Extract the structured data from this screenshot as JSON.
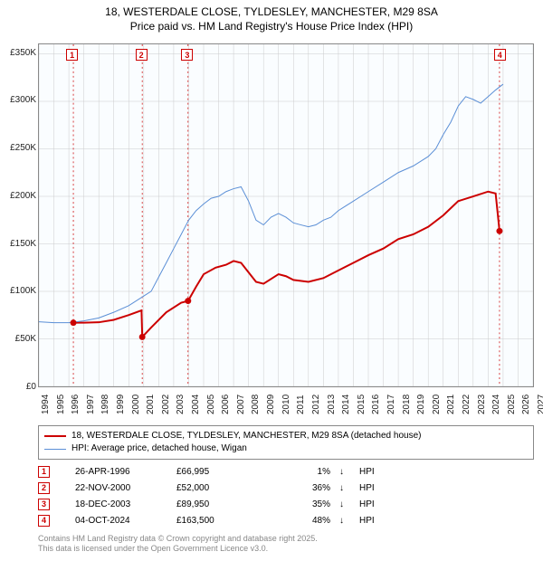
{
  "title_line1": "18, WESTERDALE CLOSE, TYLDESLEY, MANCHESTER, M29 8SA",
  "title_line2": "Price paid vs. HM Land Registry's House Price Index (HPI)",
  "chart": {
    "type": "line",
    "background_color": "#fafdff",
    "grid_color": "#cccccc",
    "border_color": "#888888",
    "x_years": [
      1994,
      1995,
      1996,
      1997,
      1998,
      1999,
      2000,
      2001,
      2002,
      2003,
      2004,
      2005,
      2006,
      2007,
      2008,
      2009,
      2010,
      2011,
      2012,
      2013,
      2014,
      2015,
      2016,
      2017,
      2018,
      2019,
      2020,
      2021,
      2022,
      2023,
      2024,
      2025,
      2026,
      2027
    ],
    "xlim": [
      1994,
      2027
    ],
    "ylim": [
      0,
      360000
    ],
    "ytick_step": 50000,
    "ytick_labels": [
      "£0",
      "£50K",
      "£100K",
      "£150K",
      "£200K",
      "£250K",
      "£300K",
      "£350K"
    ],
    "series": [
      {
        "name": "18, WESTERDALE CLOSE, TYLDESLEY, MANCHESTER, M29 8SA (detached house)",
        "color": "#cc0000",
        "width": 2,
        "points": [
          [
            1996.3,
            66995
          ],
          [
            1997,
            67000
          ],
          [
            1998,
            67500
          ],
          [
            1999,
            70000
          ],
          [
            2000,
            75000
          ],
          [
            2000.85,
            80000
          ],
          [
            2000.9,
            52000
          ],
          [
            2001.5,
            62000
          ],
          [
            2002.5,
            78000
          ],
          [
            2003.5,
            88000
          ],
          [
            2003.96,
            89950
          ],
          [
            2004.5,
            105000
          ],
          [
            2005,
            118000
          ],
          [
            2005.8,
            125000
          ],
          [
            2006.5,
            128000
          ],
          [
            2007,
            132000
          ],
          [
            2007.5,
            130000
          ],
          [
            2008,
            120000
          ],
          [
            2008.5,
            110000
          ],
          [
            2009,
            108000
          ],
          [
            2009.5,
            113000
          ],
          [
            2010,
            118000
          ],
          [
            2010.5,
            116000
          ],
          [
            2011,
            112000
          ],
          [
            2012,
            110000
          ],
          [
            2013,
            114000
          ],
          [
            2014,
            122000
          ],
          [
            2015,
            130000
          ],
          [
            2016,
            138000
          ],
          [
            2017,
            145000
          ],
          [
            2018,
            155000
          ],
          [
            2019,
            160000
          ],
          [
            2020,
            168000
          ],
          [
            2021,
            180000
          ],
          [
            2022,
            195000
          ],
          [
            2023,
            200000
          ],
          [
            2024,
            205000
          ],
          [
            2024.5,
            203000
          ],
          [
            2024.76,
            163500
          ]
        ],
        "sale_markers": [
          {
            "x": 1996.3,
            "y": 66995,
            "n": "1"
          },
          {
            "x": 2000.9,
            "y": 52000,
            "n": "2"
          },
          {
            "x": 2003.96,
            "y": 89950,
            "n": "3"
          },
          {
            "x": 2024.76,
            "y": 163500,
            "n": "4"
          }
        ]
      },
      {
        "name": "HPI: Average price, detached house, Wigan",
        "color": "#5b8fd6",
        "width": 1,
        "points": [
          [
            1994,
            68000
          ],
          [
            1995,
            67000
          ],
          [
            1996,
            67000
          ],
          [
            1997,
            69000
          ],
          [
            1998,
            72000
          ],
          [
            1999,
            78000
          ],
          [
            2000,
            85000
          ],
          [
            2001,
            95000
          ],
          [
            2001.5,
            100000
          ],
          [
            2002,
            115000
          ],
          [
            2002.5,
            130000
          ],
          [
            2003,
            145000
          ],
          [
            2003.5,
            160000
          ],
          [
            2004,
            175000
          ],
          [
            2004.5,
            185000
          ],
          [
            2005,
            192000
          ],
          [
            2005.5,
            198000
          ],
          [
            2006,
            200000
          ],
          [
            2006.5,
            205000
          ],
          [
            2007,
            208000
          ],
          [
            2007.5,
            210000
          ],
          [
            2008,
            195000
          ],
          [
            2008.5,
            175000
          ],
          [
            2009,
            170000
          ],
          [
            2009.5,
            178000
          ],
          [
            2010,
            182000
          ],
          [
            2010.5,
            178000
          ],
          [
            2011,
            172000
          ],
          [
            2011.5,
            170000
          ],
          [
            2012,
            168000
          ],
          [
            2012.5,
            170000
          ],
          [
            2013,
            175000
          ],
          [
            2013.5,
            178000
          ],
          [
            2014,
            185000
          ],
          [
            2015,
            195000
          ],
          [
            2016,
            205000
          ],
          [
            2017,
            215000
          ],
          [
            2018,
            225000
          ],
          [
            2019,
            232000
          ],
          [
            2020,
            242000
          ],
          [
            2020.5,
            250000
          ],
          [
            2021,
            265000
          ],
          [
            2021.5,
            278000
          ],
          [
            2022,
            295000
          ],
          [
            2022.5,
            305000
          ],
          [
            2023,
            302000
          ],
          [
            2023.5,
            298000
          ],
          [
            2024,
            305000
          ],
          [
            2024.5,
            312000
          ],
          [
            2025,
            318000
          ]
        ]
      }
    ],
    "marker_vlines_color": "#cc0000",
    "marker_box_border": "#cc0000",
    "marker_box_text": "#cc0000"
  },
  "legend": {
    "items": [
      {
        "color": "#cc0000",
        "width": 2,
        "label": "18, WESTERDALE CLOSE, TYLDESLEY, MANCHESTER, M29 8SA (detached house)"
      },
      {
        "color": "#5b8fd6",
        "width": 1,
        "label": "HPI: Average price, detached house, Wigan"
      }
    ]
  },
  "transactions": [
    {
      "n": "1",
      "date": "26-APR-1996",
      "price": "£66,995",
      "pct": "1%",
      "arrow": "↓",
      "hpi": "HPI"
    },
    {
      "n": "2",
      "date": "22-NOV-2000",
      "price": "£52,000",
      "pct": "36%",
      "arrow": "↓",
      "hpi": "HPI"
    },
    {
      "n": "3",
      "date": "18-DEC-2003",
      "price": "£89,950",
      "pct": "35%",
      "arrow": "↓",
      "hpi": "HPI"
    },
    {
      "n": "4",
      "date": "04-OCT-2024",
      "price": "£163,500",
      "pct": "48%",
      "arrow": "↓",
      "hpi": "HPI"
    }
  ],
  "footer_line1": "Contains HM Land Registry data © Crown copyright and database right 2025.",
  "footer_line2": "This data is licensed under the Open Government Licence v3.0."
}
